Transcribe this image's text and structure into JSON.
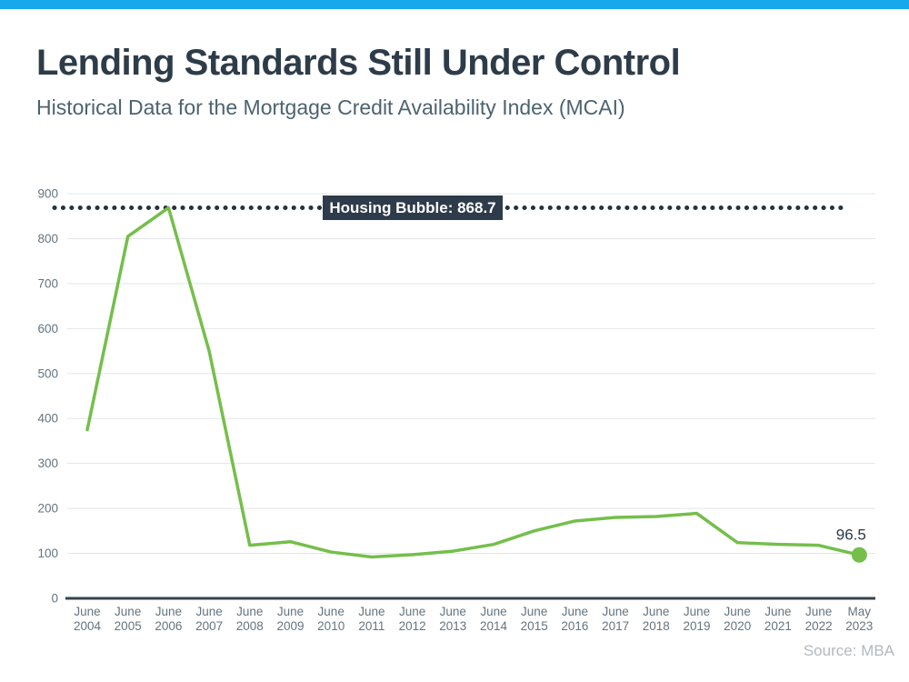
{
  "page": {
    "accent_bar_color": "#18a9ec",
    "background_color": "#ffffff"
  },
  "header": {
    "title": "Lending Standards Still Under Control",
    "subtitle": "Historical Data for the Mortgage Credit Availability Index (MCAI)"
  },
  "footer": {
    "source": "Source: MBA"
  },
  "chart_data": {
    "type": "line",
    "title": "Lending Standards Still Under Control",
    "subtitle": "Historical Data for the Mortgage Credit Availability Index (MCAI)",
    "xlabel": "",
    "ylabel": "",
    "categories": [
      "June 2004",
      "June 2005",
      "June 2006",
      "June 2007",
      "June 2008",
      "June 2009",
      "June 2010",
      "June 2011",
      "June 2012",
      "June 2013",
      "June 2014",
      "June 2015",
      "June 2016",
      "June 2017",
      "June 2018",
      "June 2019",
      "June 2020",
      "June 2021",
      "June 2022",
      "May 2023"
    ],
    "values": [
      375,
      805,
      868.7,
      550,
      118,
      126,
      103,
      92,
      97,
      105,
      120,
      150,
      172,
      180,
      182,
      189,
      124,
      120,
      118,
      96.5
    ],
    "ylim": [
      0,
      900
    ],
    "yticks": [
      0,
      100,
      200,
      300,
      400,
      500,
      600,
      700,
      800,
      900
    ],
    "grid": true,
    "legend_position": "none",
    "line_color": "#74bf4b",
    "grid_color": "#e3e6e8",
    "axis_color": "#37434d",
    "tick_label_color": "#65747f",
    "value_label_color": "#2c3945",
    "reference_line": {
      "value": 868.7,
      "label": "Housing Bubble: 868.7",
      "style": "dotted",
      "color": "#26323e",
      "label_bg": "#2e3b4a",
      "label_text_color": "#ffffff"
    },
    "last_point": {
      "value": 96.5,
      "label": "96.5",
      "marker_color": "#74bf4b"
    }
  }
}
